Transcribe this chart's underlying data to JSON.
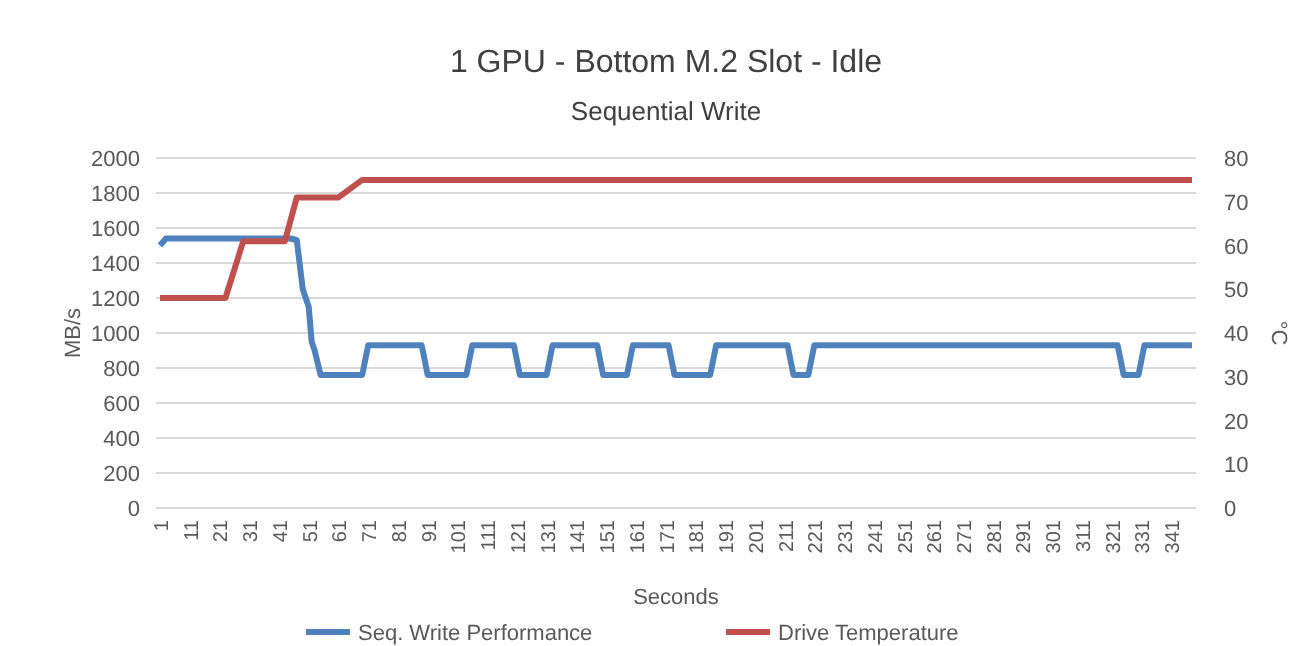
{
  "chart_data": {
    "type": "line",
    "title": "1 GPU - Bottom M.2 Slot - Idle",
    "subtitle": "Sequential Write",
    "xlabel": "Seconds",
    "ylabel": "MB/s",
    "y2label": "°C",
    "xlim": [
      1,
      348
    ],
    "xticks": [
      1,
      11,
      21,
      31,
      41,
      51,
      61,
      71,
      81,
      91,
      101,
      111,
      121,
      131,
      141,
      151,
      161,
      171,
      181,
      191,
      201,
      211,
      221,
      231,
      241,
      251,
      261,
      271,
      281,
      291,
      301,
      311,
      321,
      331,
      341
    ],
    "ylim": [
      0,
      2000
    ],
    "yticks": [
      0,
      200,
      400,
      600,
      800,
      1000,
      1200,
      1400,
      1600,
      1800,
      2000
    ],
    "y2lim": [
      0,
      80
    ],
    "y2ticks": [
      0,
      10,
      20,
      30,
      40,
      50,
      60,
      70,
      80
    ],
    "grid": "y",
    "legend": "bottom",
    "series": [
      {
        "name": "Seq. Write Performance",
        "color": "#4f81bd",
        "x": [
          1,
          3,
          45,
          47,
          49,
          51,
          52,
          53,
          55,
          69,
          71,
          89,
          91,
          104,
          106,
          120,
          122,
          131,
          133,
          148,
          150,
          158,
          160,
          172,
          174,
          186,
          188,
          212,
          214,
          219,
          221,
          323,
          325,
          330,
          332,
          348
        ],
        "values": [
          1500,
          1540,
          1540,
          1530,
          1250,
          1150,
          950,
          900,
          760,
          760,
          930,
          930,
          760,
          760,
          930,
          930,
          760,
          760,
          930,
          930,
          760,
          760,
          930,
          930,
          760,
          760,
          930,
          930,
          760,
          760,
          930,
          930,
          760,
          760,
          930,
          930
        ]
      },
      {
        "name": "Drive Temperature",
        "color": "#c0504d",
        "axis": "y2",
        "x": [
          1,
          23,
          29,
          43,
          47,
          61,
          69,
          348
        ],
        "values": [
          48,
          48,
          61,
          61,
          71,
          71,
          75,
          75
        ]
      }
    ]
  }
}
